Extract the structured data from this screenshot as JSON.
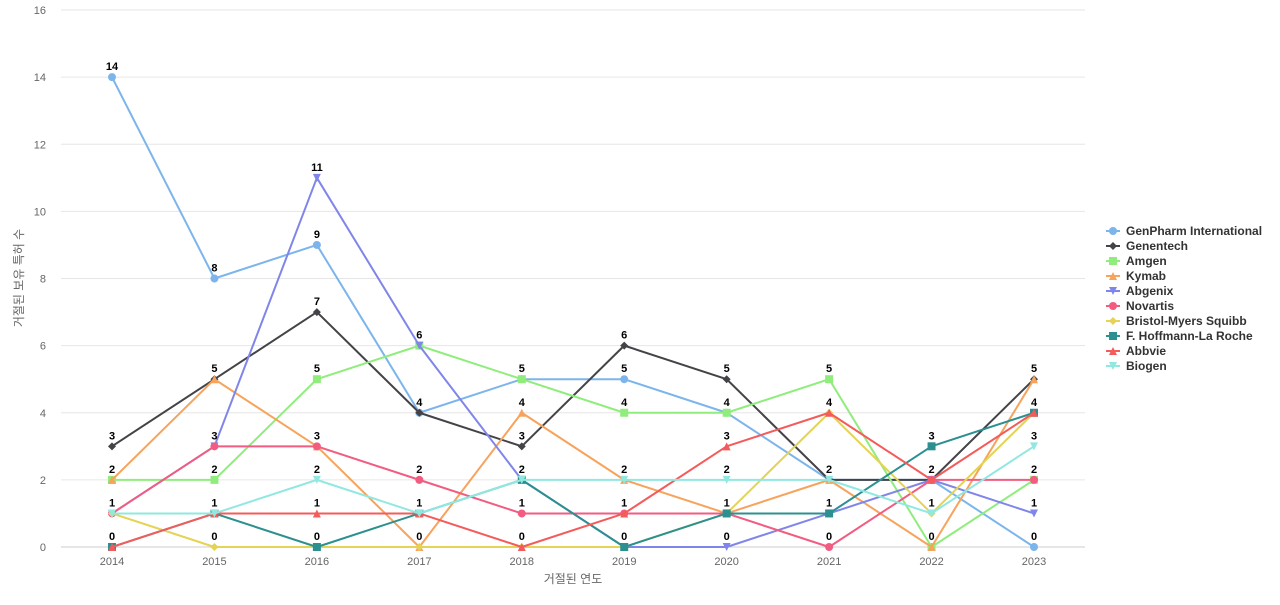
{
  "chart_data": {
    "type": "line",
    "xlabel": "거절된 연도",
    "ylabel": "거절된 보유 특허 수",
    "ylim": [
      0,
      16
    ],
    "yticks": [
      0,
      2,
      4,
      6,
      8,
      10,
      12,
      14,
      16
    ],
    "grid": true,
    "legend_position": "right",
    "categories": [
      "2014",
      "2015",
      "2016",
      "2017",
      "2018",
      "2019",
      "2020",
      "2021",
      "2022",
      "2023"
    ],
    "series": [
      {
        "name": "GenPharm International",
        "color": "#7cb5ec",
        "marker": "circle",
        "values": [
          14,
          8,
          9,
          4,
          5,
          5,
          4,
          2,
          2,
          0
        ]
      },
      {
        "name": "Genentech",
        "color": "#434348",
        "marker": "diamond",
        "values": [
          3,
          5,
          7,
          4,
          3,
          6,
          5,
          2,
          2,
          5
        ]
      },
      {
        "name": "Amgen",
        "color": "#90ed7d",
        "marker": "square",
        "values": [
          2,
          2,
          5,
          6,
          5,
          4,
          4,
          5,
          0,
          2
        ]
      },
      {
        "name": "Kymab",
        "color": "#f7a35c",
        "marker": "triangle",
        "values": [
          2,
          5,
          3,
          0,
          4,
          2,
          1,
          2,
          0,
          5
        ]
      },
      {
        "name": "Abgenix",
        "color": "#8085e9",
        "marker": "triangle-down",
        "values": [
          1,
          3,
          11,
          6,
          2,
          0,
          0,
          1,
          2,
          1
        ]
      },
      {
        "name": "Novartis",
        "color": "#f15c80",
        "marker": "circle",
        "values": [
          1,
          3,
          3,
          2,
          1,
          1,
          1,
          0,
          2,
          2
        ]
      },
      {
        "name": "Bristol-Myers Squibb",
        "color": "#e4d354",
        "marker": "diamond",
        "values": [
          1,
          0,
          0,
          0,
          0,
          0,
          1,
          4,
          1,
          4
        ]
      },
      {
        "name": "F. Hoffmann-La Roche",
        "color": "#2b908f",
        "marker": "square",
        "values": [
          0,
          1,
          0,
          1,
          2,
          0,
          1,
          1,
          3,
          4
        ]
      },
      {
        "name": "Abbvie",
        "color": "#f45b5b",
        "marker": "triangle",
        "values": [
          0,
          1,
          1,
          1,
          0,
          1,
          3,
          4,
          2,
          4
        ]
      },
      {
        "name": "Biogen",
        "color": "#91e8e1",
        "marker": "triangle-down",
        "values": [
          1,
          1,
          2,
          1,
          2,
          2,
          2,
          2,
          1,
          3
        ]
      }
    ],
    "data_labels": {
      "2014": [
        {
          "value": 14,
          "series": "GenPharm International"
        },
        {
          "value": 3,
          "series": "Genentech"
        },
        {
          "value": 2,
          "series": "Amgen"
        },
        {
          "value": 1,
          "series": "Abgenix"
        },
        {
          "value": 0,
          "series": "F. Hoffmann-La Roche"
        }
      ],
      "2015": [
        {
          "value": 8,
          "series": "GenPharm International"
        },
        {
          "value": 5,
          "series": "Kymab"
        },
        {
          "value": 3,
          "series": "Abgenix"
        },
        {
          "value": 2,
          "series": "Amgen"
        },
        {
          "value": 1,
          "series": "Biogen"
        },
        {
          "value": 0,
          "series": "Bristol-Myers Squibb"
        }
      ],
      "2016": [
        {
          "value": 11,
          "series": "Abgenix"
        },
        {
          "value": 9,
          "series": "GenPharm International"
        },
        {
          "value": 7,
          "series": "Genentech"
        },
        {
          "value": 5,
          "series": "Amgen"
        },
        {
          "value": 3,
          "series": "Novartis"
        },
        {
          "value": 2,
          "series": "Biogen"
        },
        {
          "value": 1,
          "series": "Abbvie"
        },
        {
          "value": 0,
          "series": "F. Hoffmann-La Roche"
        }
      ],
      "2017": [
        {
          "value": 6,
          "series": "Amgen"
        },
        {
          "value": 4,
          "series": "Genentech"
        },
        {
          "value": 2,
          "series": "Novartis"
        },
        {
          "value": 1,
          "series": "F. Hoffmann-La Roche"
        },
        {
          "value": 0,
          "series": "Kymab"
        }
      ],
      "2018": [
        {
          "value": 5,
          "series": "GenPharm International"
        },
        {
          "value": 4,
          "series": "Kymab"
        },
        {
          "value": 3,
          "series": "Genentech"
        },
        {
          "value": 2,
          "series": "Biogen"
        },
        {
          "value": 1,
          "series": "Novartis"
        },
        {
          "value": 0,
          "series": "Abbvie"
        }
      ],
      "2019": [
        {
          "value": 6,
          "series": "Genentech"
        },
        {
          "value": 5,
          "series": "GenPharm International"
        },
        {
          "value": 4,
          "series": "Amgen"
        },
        {
          "value": 2,
          "series": "Kymab"
        },
        {
          "value": 1,
          "series": "Abbvie"
        },
        {
          "value": 0,
          "series": "F. Hoffmann-La Roche"
        }
      ],
      "2020": [
        {
          "value": 5,
          "series": "Genentech"
        },
        {
          "value": 4,
          "series": "Amgen"
        },
        {
          "value": 3,
          "series": "Abbvie"
        },
        {
          "value": 2,
          "series": "Biogen"
        },
        {
          "value": 1,
          "series": "F. Hoffmann-La Roche"
        },
        {
          "value": 0,
          "series": "Abgenix"
        }
      ],
      "2021": [
        {
          "value": 5,
          "series": "Amgen"
        },
        {
          "value": 4,
          "series": "Bristol-Myers Squibb"
        },
        {
          "value": 2,
          "series": "Biogen"
        },
        {
          "value": 1,
          "series": "F. Hoffmann-La Roche"
        },
        {
          "value": 0,
          "series": "Novartis"
        }
      ],
      "2022": [
        {
          "value": 3,
          "series": "F. Hoffmann-La Roche"
        },
        {
          "value": 2,
          "series": "Abgenix"
        },
        {
          "value": 1,
          "series": "Bristol-Myers Squibb"
        },
        {
          "value": 0,
          "series": "Kymab"
        }
      ],
      "2023": [
        {
          "value": 5,
          "series": "Genentech"
        },
        {
          "value": 4,
          "series": "F. Hoffmann-La Roche"
        },
        {
          "value": 3,
          "series": "Biogen"
        },
        {
          "value": 2,
          "series": "Novartis"
        },
        {
          "value": 1,
          "series": "Abgenix"
        },
        {
          "value": 0,
          "series": "GenPharm International"
        }
      ]
    }
  }
}
